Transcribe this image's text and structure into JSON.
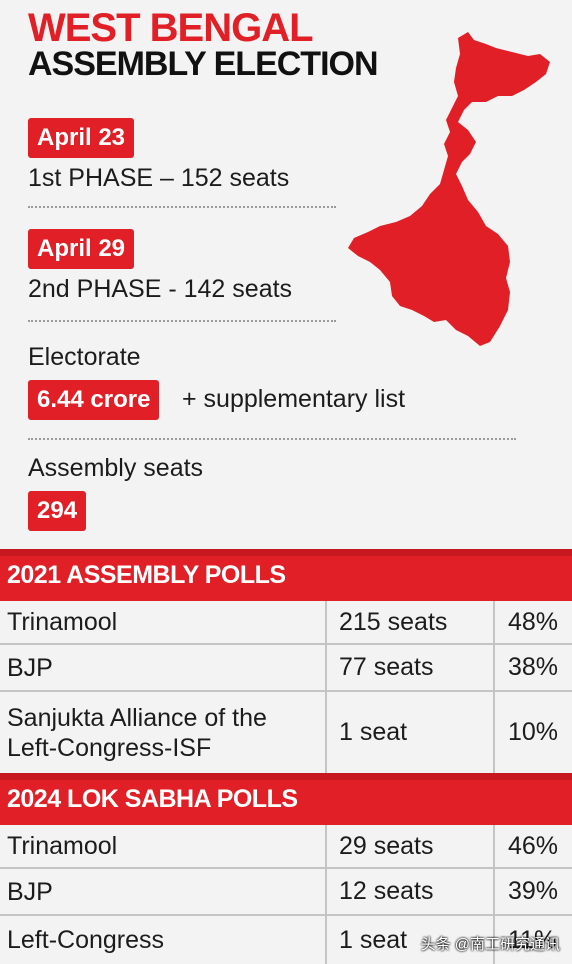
{
  "header": {
    "title_line1": "WEST BENGAL",
    "title_line2": "ASSEMBLY ELECTION"
  },
  "phases": [
    {
      "date": "April 23",
      "text": "1st PHASE – 152 seats"
    },
    {
      "date": "April 29",
      "text": "2nd PHASE - 142 seats"
    }
  ],
  "electorate": {
    "label": "Electorate",
    "value": "6.44 crore",
    "suffix": "+ supplementary list"
  },
  "assembly_seats": {
    "label": "Assembly seats",
    "value": "294"
  },
  "polls_2021": {
    "heading": "2021 ASSEMBLY POLLS",
    "rows": [
      {
        "party": "Trinamool",
        "seats": "215 seats",
        "share": "48%"
      },
      {
        "party": "BJP",
        "seats": "77 seats",
        "share": "38%"
      },
      {
        "party": "Sanjukta Alliance of the Left-Congress-ISF",
        "seats": "1 seat",
        "share": "10%"
      }
    ]
  },
  "polls_2024": {
    "heading": "2024 LOK SABHA POLLS",
    "rows": [
      {
        "party": "Trinamool",
        "seats": "29 seats",
        "share": "46%"
      },
      {
        "party": "BJP",
        "seats": "12 seats",
        "share": "39%"
      },
      {
        "party": "Left-Congress",
        "seats": "1 seat",
        "share": "11%"
      }
    ]
  },
  "watermark": "头条 @南工研究通讯",
  "colors": {
    "accent": "#e01f26",
    "text": "#1c1c1c",
    "background": "#f3f3f3"
  }
}
